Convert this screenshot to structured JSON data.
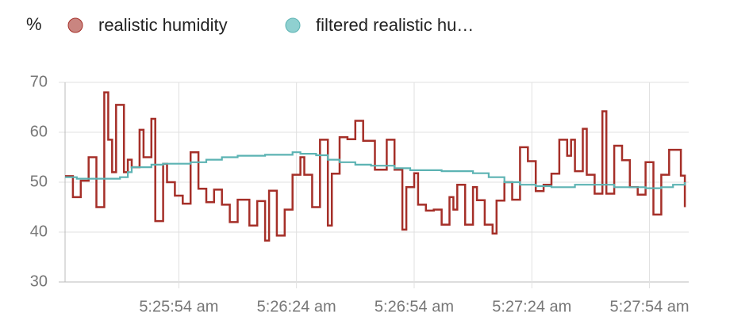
{
  "chart_data": {
    "type": "step-line",
    "y_label": "%",
    "grid": true,
    "ylim": [
      30,
      70
    ],
    "yticks": [
      30,
      40,
      50,
      60,
      70
    ],
    "xlim": [
      "5:25:25 am",
      "5:28:04 am"
    ],
    "xticks": [
      "5:25:54 am",
      "5:26:24 am",
      "5:26:54 am",
      "5:27:24 am",
      "5:27:54 am"
    ],
    "series": [
      {
        "name": "realistic humidity",
        "color": "#a52f28",
        "legend_color": "#c98580",
        "x": [
          "5:25:25 am",
          "5:25:27 am",
          "5:25:29 am",
          "5:25:31 am",
          "5:25:33 am",
          "5:25:35 am",
          "5:25:36 am",
          "5:25:37 am",
          "5:25:38 am",
          "5:25:40 am",
          "5:25:41 am",
          "5:25:42 am",
          "5:25:44 am",
          "5:25:45 am",
          "5:25:47 am",
          "5:25:48 am",
          "5:25:50 am",
          "5:25:51 am",
          "5:25:53 am",
          "5:25:55 am",
          "5:25:57 am",
          "5:25:59 am",
          "5:26:01 am",
          "5:26:03 am",
          "5:26:05 am",
          "5:26:07 am",
          "5:26:09 am",
          "5:26:12 am",
          "5:26:14 am",
          "5:26:16 am",
          "5:26:17 am",
          "5:26:19 am",
          "5:26:21 am",
          "5:26:23 am",
          "5:26:25 am",
          "5:26:26 am",
          "5:26:28 am",
          "5:26:30 am",
          "5:26:32 am",
          "5:26:33 am",
          "5:26:35 am",
          "5:26:37 am",
          "5:26:39 am",
          "5:26:41 am",
          "5:26:44 am",
          "5:26:47 am",
          "5:26:49 am",
          "5:26:51 am",
          "5:26:52 am",
          "5:26:54 am",
          "5:26:55 am",
          "5:26:57 am",
          "5:26:59 am",
          "5:27:01 am",
          "5:27:03 am",
          "5:27:04 am",
          "5:27:05 am",
          "5:27:07 am",
          "5:27:09 am",
          "5:27:10 am",
          "5:27:12 am",
          "5:27:14 am",
          "5:27:15 am",
          "5:27:17 am",
          "5:27:19 am",
          "5:27:21 am",
          "5:27:23 am",
          "5:27:25 am",
          "5:27:27 am",
          "5:27:29 am",
          "5:27:31 am",
          "5:27:33 am",
          "5:27:34 am",
          "5:27:35 am",
          "5:27:37 am",
          "5:27:38 am",
          "5:27:40 am",
          "5:27:42 am",
          "5:27:43 am",
          "5:27:45 am",
          "5:27:47 am",
          "5:27:49 am",
          "5:27:51 am",
          "5:27:53 am",
          "5:27:55 am",
          "5:27:57 am",
          "5:27:59 am",
          "5:28:02 am",
          "5:28:03 am"
        ],
        "values": [
          51.2,
          47,
          50.3,
          55,
          45,
          68,
          58.5,
          52,
          65.5,
          52,
          54.5,
          53,
          60.5,
          55,
          62.7,
          42.2,
          53.7,
          50,
          47.3,
          45.7,
          56,
          48.7,
          46,
          48.5,
          45.5,
          42,
          46.5,
          41.3,
          46.2,
          38.3,
          48.3,
          39.3,
          44.5,
          51.5,
          55,
          51.5,
          45,
          58.5,
          41.3,
          51.7,
          59,
          58.6,
          62.3,
          58.3,
          52.5,
          58.5,
          52.5,
          40.5,
          49,
          51.8,
          45.5,
          44.3,
          44.5,
          41.5,
          47,
          44.5,
          49.5,
          41.5,
          49,
          46.4,
          41.5,
          39.7,
          46.3,
          50,
          46.5,
          57,
          54.2,
          48.2,
          49.5,
          51.7,
          58.5,
          55.3,
          58.5,
          52.2,
          60.7,
          51.5,
          47.7,
          64.2,
          47.7,
          57.3,
          54.4,
          49,
          47.5,
          54,
          43.5,
          51.5,
          56.5,
          51.3,
          45
        ]
      },
      {
        "name": "filtered realistic hu…",
        "color": "#5cb3b3",
        "legend_color": "#8fd0d0",
        "x": [
          "5:25:25 am",
          "5:25:28 am",
          "5:25:39 am",
          "5:25:41 am",
          "5:25:42 am",
          "5:25:47 am",
          "5:25:50 am",
          "5:25:57 am",
          "5:26:01 am",
          "5:26:05 am",
          "5:26:09 am",
          "5:26:16 am",
          "5:26:23 am",
          "5:26:25 am",
          "5:26:29 am",
          "5:26:32 am",
          "5:26:35 am",
          "5:26:39 am",
          "5:26:43 am",
          "5:26:49 am",
          "5:26:53 am",
          "5:27:01 am",
          "5:27:09 am",
          "5:27:13 am",
          "5:27:17 am",
          "5:27:21 am",
          "5:27:25 am",
          "5:27:29 am",
          "5:27:35 am",
          "5:27:41 am",
          "5:27:45 am",
          "5:27:53 am",
          "5:27:57 am",
          "5:28:00 am",
          "5:28:03 am"
        ],
        "values": [
          51,
          50.7,
          51,
          52,
          53,
          53.5,
          53.7,
          54,
          54.5,
          55,
          55.3,
          55.5,
          56,
          55.7,
          55.4,
          54.5,
          54,
          53.5,
          53.3,
          52.8,
          52.4,
          52.2,
          51.8,
          51,
          50,
          49.5,
          49.2,
          49,
          49.5,
          49.5,
          49,
          48.8,
          49,
          49.5,
          50
        ]
      }
    ]
  }
}
